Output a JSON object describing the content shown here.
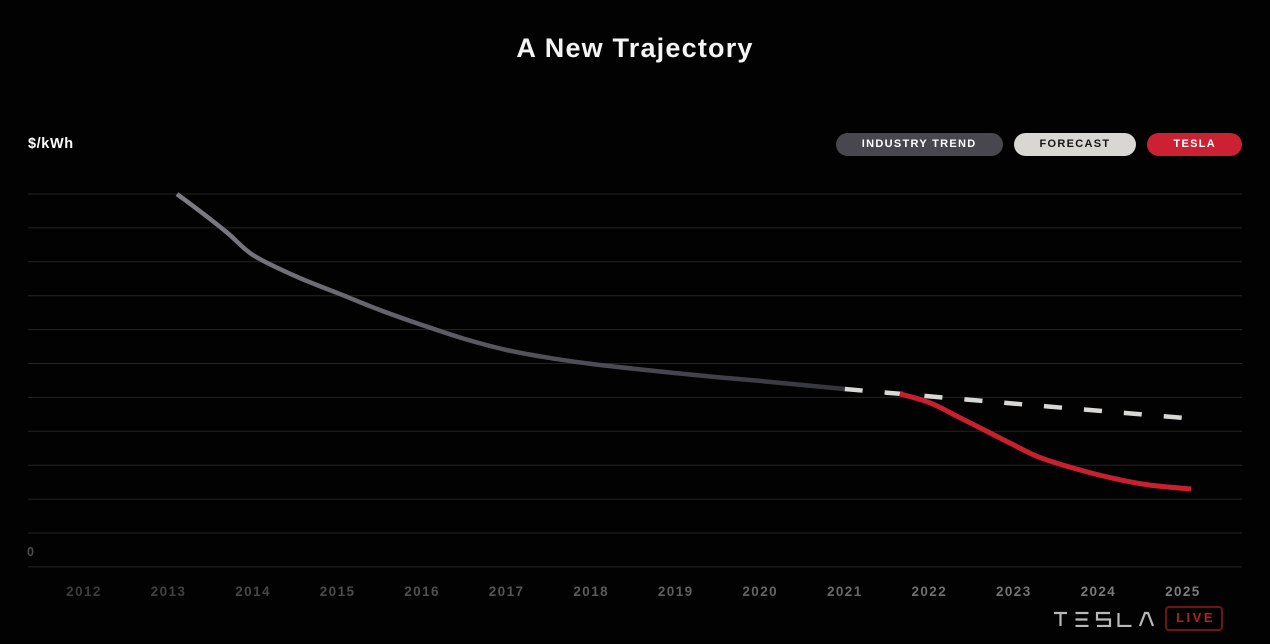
{
  "title": "A New Trajectory",
  "y_axis_label": "$/kWh",
  "zero_label": "0",
  "legend": [
    {
      "label": "INDUSTRY TREND",
      "bg": "#47474d",
      "fg": "#ffffff"
    },
    {
      "label": "FORECAST",
      "bg": "#d8d7d3",
      "fg": "#161616"
    },
    {
      "label": "TESLA",
      "bg": "#cb2132",
      "fg": "#ffffff"
    }
  ],
  "footer": {
    "wordmark": "TESLA",
    "live_label": "LIVE"
  },
  "colors": {
    "background": "#020202",
    "title": "#f4f4f4",
    "grid": "#242424",
    "tick_start": "#3c3c3c",
    "tick_end": "#7d7d7d",
    "zero": "#4d4d4d",
    "industry_gradient": [
      "#7d7d83",
      "#54545b",
      "#35353c"
    ],
    "forecast": "#d9d8d4",
    "tesla": "#c91f2f",
    "wordmark": "#b8b8b8",
    "live_border": "#701418",
    "live_text": "#b22028"
  },
  "chart_data": {
    "type": "line",
    "title": "A New Trajectory",
    "ylabel": "$/kWh",
    "x_tick_labels": [
      "2012",
      "2013",
      "2014",
      "2015",
      "2016",
      "2017",
      "2018",
      "2019",
      "2020",
      "2021",
      "2022",
      "2023",
      "2024",
      "2025"
    ],
    "x_range": [
      2012,
      2025
    ],
    "ylim": [
      0,
      11.6
    ],
    "y_gridline_step": 1,
    "y_tick_labels_visible": [
      "0"
    ],
    "grid": "horizontal",
    "legend_position": "top-right",
    "series": [
      {
        "name": "INDUSTRY TREND",
        "style": "solid",
        "gradient": true,
        "points": [
          [
            2013.1,
            11.0
          ],
          [
            2013.37,
            10.5
          ],
          [
            2013.7,
            9.85
          ],
          [
            2014.0,
            9.2
          ],
          [
            2014.5,
            8.58
          ],
          [
            2015.0,
            8.08
          ],
          [
            2015.5,
            7.58
          ],
          [
            2016.0,
            7.14
          ],
          [
            2016.5,
            6.73
          ],
          [
            2017.0,
            6.4
          ],
          [
            2017.5,
            6.17
          ],
          [
            2018.0,
            5.99
          ],
          [
            2018.5,
            5.85
          ],
          [
            2019.0,
            5.72
          ],
          [
            2019.5,
            5.6
          ],
          [
            2020.0,
            5.49
          ],
          [
            2020.5,
            5.37
          ],
          [
            2021.0,
            5.25
          ]
        ]
      },
      {
        "name": "FORECAST",
        "style": "dashed",
        "gradient": false,
        "points": [
          [
            2021.0,
            5.25
          ],
          [
            2023.0,
            4.82
          ],
          [
            2025.0,
            4.4
          ]
        ]
      },
      {
        "name": "TESLA",
        "style": "solid",
        "gradient": false,
        "points": [
          [
            2021.65,
            5.11
          ],
          [
            2022.0,
            4.85
          ],
          [
            2022.35,
            4.42
          ],
          [
            2022.7,
            3.98
          ],
          [
            2022.95,
            3.66
          ],
          [
            2023.3,
            3.24
          ],
          [
            2023.7,
            2.92
          ],
          [
            2024.15,
            2.63
          ],
          [
            2024.6,
            2.42
          ],
          [
            2025.1,
            2.3
          ]
        ]
      }
    ]
  }
}
